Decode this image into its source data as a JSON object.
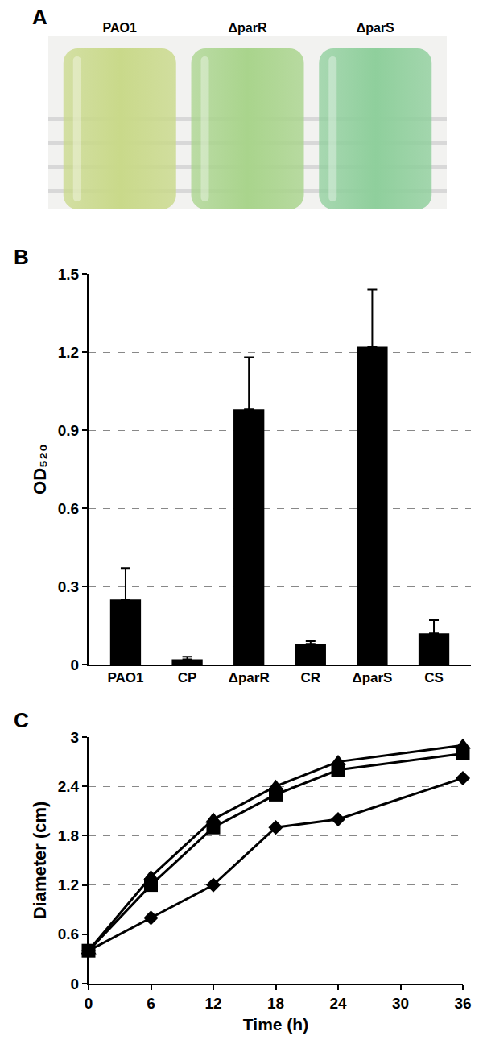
{
  "image": {
    "panel": "A",
    "tubes": [
      {
        "label": "PAO1",
        "color": "#c9d98a"
      },
      {
        "label": "ΔparR",
        "color": "#a9d48c"
      },
      {
        "label": "ΔparS",
        "color": "#8fcf9c"
      }
    ]
  },
  "chart_data": [
    {
      "panel": "B",
      "type": "bar",
      "categories": [
        "PAO1",
        "CP",
        "ΔparR",
        "CR",
        "ΔparS",
        "CS"
      ],
      "values": [
        0.25,
        0.02,
        0.98,
        0.08,
        1.22,
        0.12
      ],
      "errors": [
        0.12,
        0.01,
        0.2,
        0.01,
        0.22,
        0.05
      ],
      "color": "#000000",
      "y_label": "OD₅₂₀",
      "ylim": [
        0,
        1.5
      ],
      "yticks": [
        0,
        0.3,
        0.6,
        0.9,
        1.2,
        1.5
      ],
      "grid": true
    },
    {
      "panel": "C",
      "type": "line",
      "x_label": "Time (h)",
      "y_label": "Diameter (cm)",
      "x": [
        0,
        6,
        12,
        18,
        24,
        36
      ],
      "series": [
        {
          "color": "#000000",
          "marker": "diamond",
          "line_style": "solid",
          "values": [
            0.4,
            0.8,
            1.2,
            1.9,
            2.0,
            2.5
          ]
        },
        {
          "color": "#000000",
          "marker": "square",
          "line_style": "solid",
          "values": [
            0.4,
            1.2,
            1.9,
            2.3,
            2.6,
            2.8
          ]
        },
        {
          "color": "#000000",
          "marker": "triangle-up",
          "line_style": "solid",
          "values": [
            0.4,
            1.3,
            2.0,
            2.4,
            2.7,
            2.9
          ]
        }
      ],
      "xlim": [
        0,
        36
      ],
      "xticks": [
        0,
        6,
        12,
        18,
        24,
        30,
        36
      ],
      "ylim": [
        0,
        3
      ],
      "yticks": [
        0,
        0.6,
        1.2,
        1.8,
        2.4,
        3
      ],
      "grid": true
    }
  ]
}
